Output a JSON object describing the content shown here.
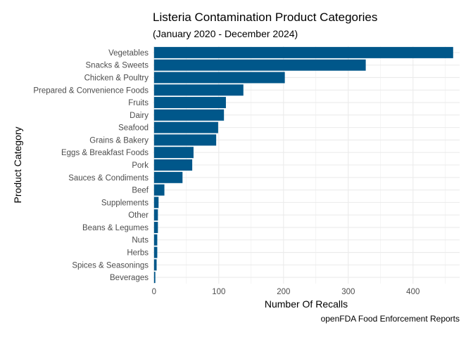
{
  "chart_data": {
    "type": "bar",
    "orientation": "horizontal",
    "title": "Listeria Contamination Product Categories",
    "subtitle": "(January 2020 - December 2024)",
    "xlabel": "Number Of Recalls",
    "ylabel": "Product Category",
    "caption": "openFDA Food Enforcement Reports",
    "categories": [
      "Vegetables",
      "Snacks & Sweets",
      "Chicken & Poultry",
      "Prepared & Convenience Foods",
      "Fruits",
      "Dairy",
      "Seafood",
      "Grains & Bakery",
      "Eggs & Breakfast Foods",
      "Pork",
      "Sauces & Condiments",
      "Beef",
      "Supplements",
      "Other",
      "Beans & Legumes",
      "Nuts",
      "Herbs",
      "Spices & Seasonings",
      "Beverages"
    ],
    "values": [
      462,
      327,
      202,
      138,
      111,
      108,
      99,
      96,
      61,
      59,
      44,
      16,
      7,
      6,
      6,
      5,
      5,
      4,
      2
    ],
    "xlim": [
      -2,
      472
    ],
    "xticks": [
      0,
      100,
      200,
      300,
      400
    ],
    "grid": true,
    "legend": "none",
    "bar_color": "#00578a"
  }
}
